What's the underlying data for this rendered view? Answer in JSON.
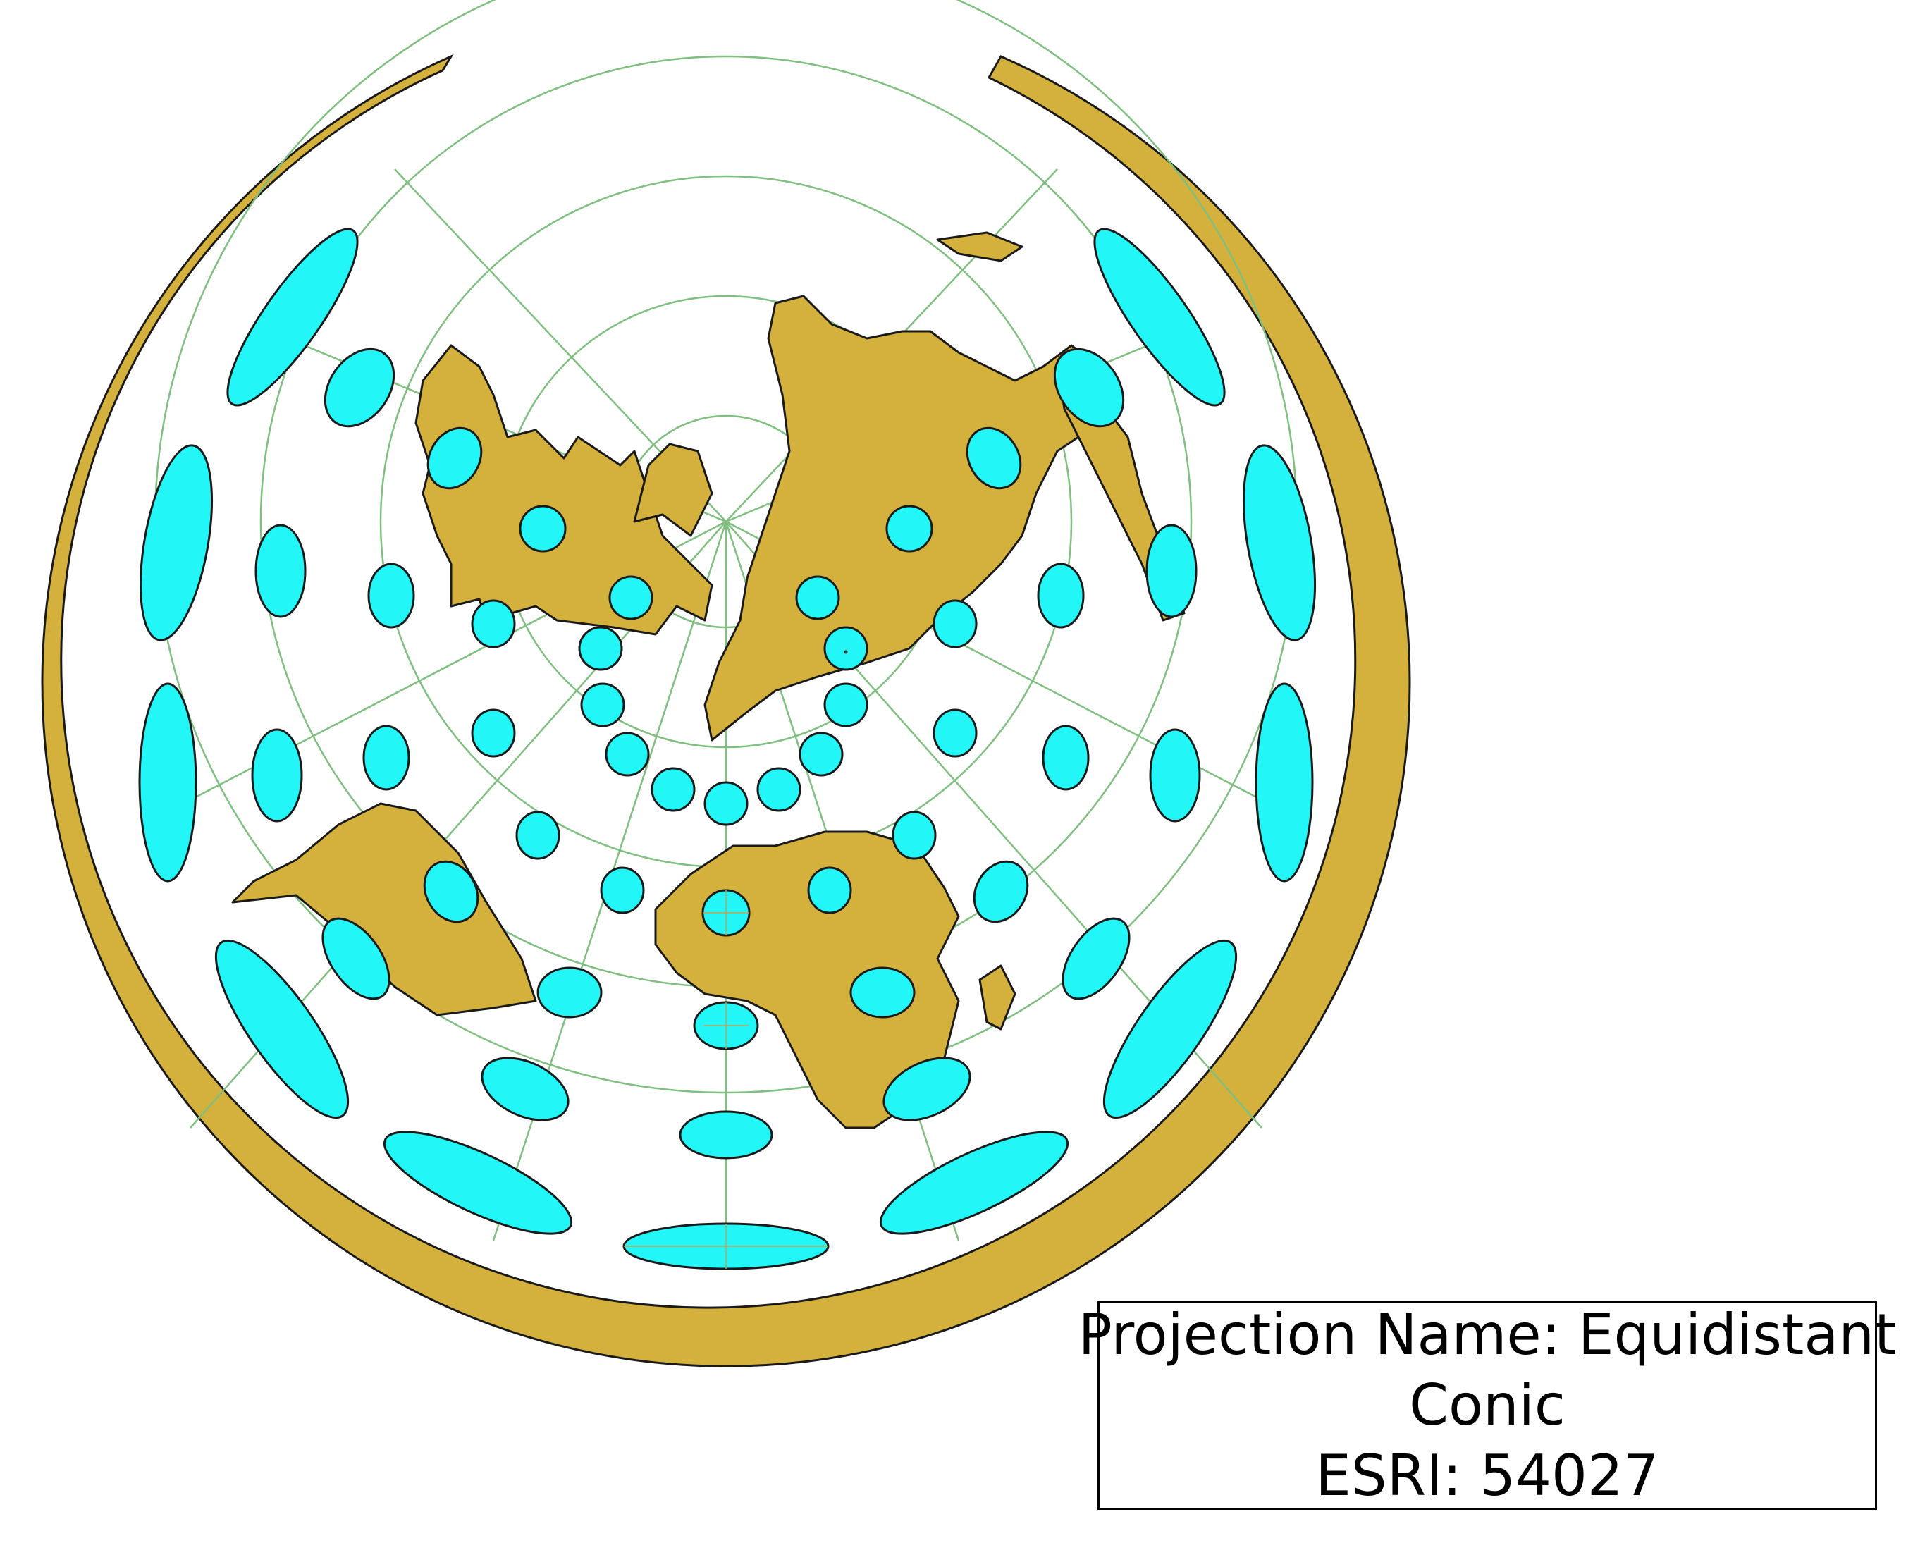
{
  "legend": {
    "line1": "Projection Name: Equidistant",
    "line2": "Conic",
    "line3": "ESRI: 54027"
  },
  "colors": {
    "land": "#d3b13c",
    "indicatrix": "#22f6f6",
    "graticule": "#7fbf7f",
    "outline": "#1a1a1a",
    "background": "#ffffff"
  },
  "map": {
    "projection": "Equidistant Conic",
    "indicatrix_shape": "ellipse",
    "graticule": true
  }
}
